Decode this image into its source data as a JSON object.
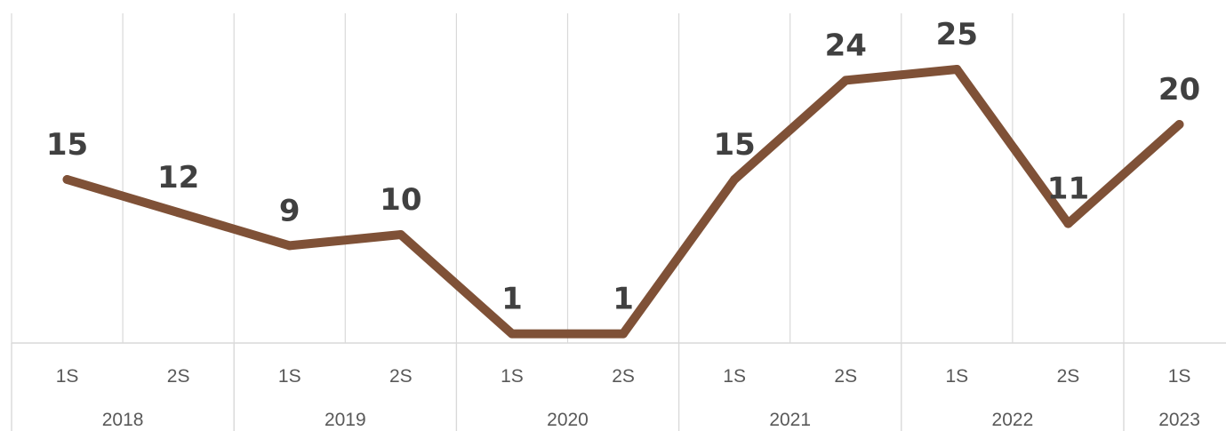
{
  "chart_data": {
    "type": "line",
    "title": "",
    "xlabel": "",
    "ylabel": "",
    "grid": true,
    "legend": "none",
    "categories": [
      {
        "semester": "1S",
        "year": "2018"
      },
      {
        "semester": "2S",
        "year": "2018"
      },
      {
        "semester": "1S",
        "year": "2019"
      },
      {
        "semester": "2S",
        "year": "2019"
      },
      {
        "semester": "1S",
        "year": "2020"
      },
      {
        "semester": "2S",
        "year": "2020"
      },
      {
        "semester": "1S",
        "year": "2021"
      },
      {
        "semester": "2S",
        "year": "2021"
      },
      {
        "semester": "1S",
        "year": "2022"
      },
      {
        "semester": "2S",
        "year": "2022"
      },
      {
        "semester": "1S",
        "year": "2023"
      }
    ],
    "year_groups": [
      {
        "label": "2018",
        "start": 0,
        "end": 1
      },
      {
        "label": "2019",
        "start": 2,
        "end": 3
      },
      {
        "label": "2020",
        "start": 4,
        "end": 5
      },
      {
        "label": "2021",
        "start": 6,
        "end": 7
      },
      {
        "label": "2022",
        "start": 8,
        "end": 9
      },
      {
        "label": "2023",
        "start": 10,
        "end": 10
      }
    ],
    "series": [
      {
        "values": [
          15,
          12,
          9,
          10,
          1,
          1,
          15,
          24,
          25,
          11,
          20
        ],
        "color": "#7f5137",
        "data_labels": [
          "15",
          "12",
          "9",
          "10",
          "1",
          "1",
          "15",
          "24",
          "25",
          "11",
          "20"
        ]
      }
    ],
    "ylim": [
      0,
      30
    ]
  }
}
